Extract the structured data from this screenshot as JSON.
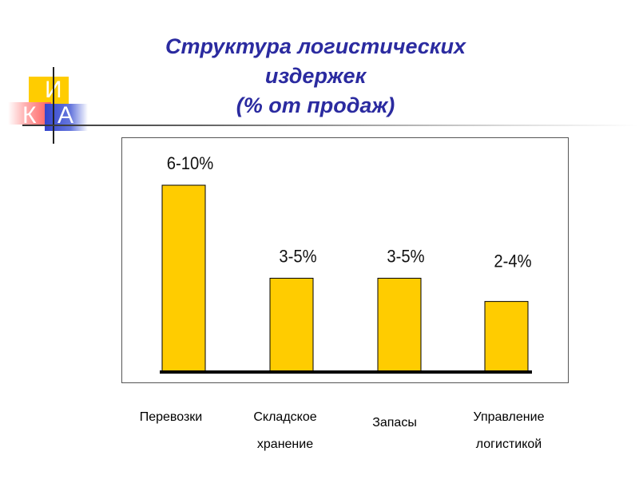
{
  "logo": {
    "letters": [
      "И",
      "К",
      "А"
    ]
  },
  "title_lines": [
    "Структура логистических",
    "издержек",
    "(% от продаж)"
  ],
  "chart_data": {
    "type": "bar",
    "title": "Структура логистических издержек (% от продаж)",
    "categories": [
      "Перевозки",
      "Складское хранение",
      "Запасы",
      "Управление логистикой"
    ],
    "category_lines": [
      [
        "Перевозки"
      ],
      [
        "Складское",
        "хранение"
      ],
      [
        "Запасы"
      ],
      [
        "Управление",
        "логистикой"
      ]
    ],
    "values": [
      8,
      4,
      4,
      3
    ],
    "data_labels": [
      "6-10%",
      "3-5%",
      "3-5%",
      "2-4%"
    ],
    "ylim": [
      0,
      10
    ],
    "xlabel": "",
    "ylabel": "",
    "grid": false,
    "bar_color": "#ffcc00",
    "bar_outline": "#000000"
  },
  "colors": {
    "title": "#2b2ba0",
    "logo_yellow": "#ffcc00",
    "logo_red": "#ff5a5a",
    "logo_blue": "#3344cc"
  }
}
